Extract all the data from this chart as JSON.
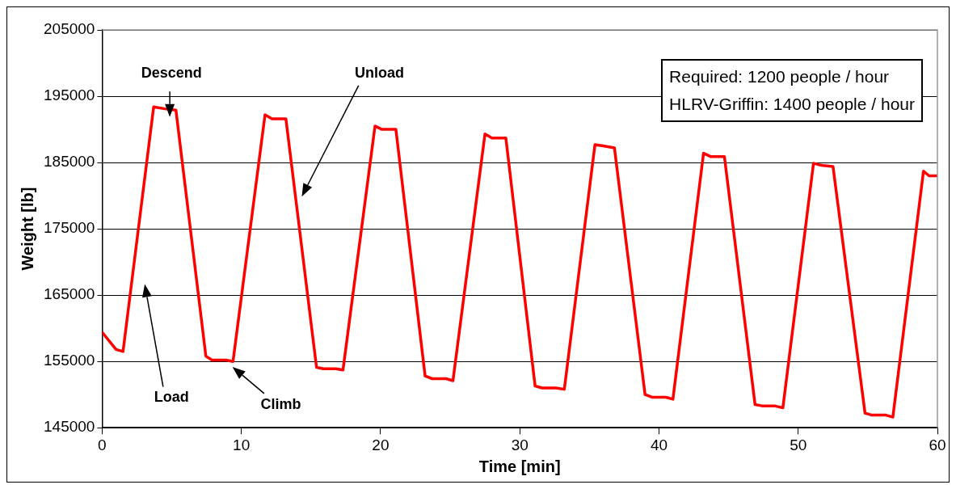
{
  "chart_data": {
    "type": "line",
    "xlabel": "Time [min]",
    "ylabel": "Weight [lb]",
    "xlim": [
      0,
      60
    ],
    "xticks": [
      0,
      10,
      20,
      30,
      40,
      50,
      60
    ],
    "ylim": [
      145000,
      205000
    ],
    "yticks": [
      145000,
      155000,
      165000,
      175000,
      185000,
      195000,
      205000
    ],
    "grid": "y",
    "legend": false,
    "marker": "none",
    "line_style": "solid",
    "series": [
      {
        "color": "#ff0000",
        "x": [
          0,
          1.0,
          1.5,
          3.7,
          4.5,
          5.3,
          7.45,
          7.9,
          8.9,
          9.4,
          11.7,
          12.2,
          13.2,
          15.4,
          15.9,
          16.8,
          17.3,
          19.6,
          20.1,
          21.1,
          23.2,
          23.7,
          24.7,
          25.2,
          27.5,
          28.0,
          29.0,
          31.1,
          31.6,
          32.6,
          33.2,
          35.4,
          36.0,
          36.8,
          39.0,
          39.5,
          40.5,
          41.0,
          43.2,
          43.7,
          44.7,
          46.9,
          47.4,
          48.3,
          48.9,
          51.1,
          51.6,
          52.5,
          54.8,
          55.3,
          56.3,
          56.8,
          59.0,
          59.4,
          60
        ],
        "values": [
          159400,
          156800,
          156500,
          193400,
          193100,
          192900,
          155800,
          155200,
          155200,
          155000,
          192200,
          191600,
          191600,
          154100,
          153900,
          153900,
          153700,
          190500,
          190000,
          190000,
          152800,
          152400,
          152400,
          152100,
          189300,
          188700,
          188700,
          151300,
          151000,
          151000,
          150800,
          187700,
          187500,
          187200,
          150000,
          149600,
          149600,
          149300,
          186400,
          185900,
          185900,
          148500,
          148300,
          148300,
          148000,
          184900,
          184600,
          184400,
          147200,
          146900,
          146900,
          146600,
          183700,
          183000,
          183000
        ]
      }
    ],
    "annotations": [
      "Descend",
      "Unload",
      "Load",
      "Climb",
      "Required: 1200 people / hour",
      "HLRV-Griffin: 1400 people / hour"
    ]
  }
}
